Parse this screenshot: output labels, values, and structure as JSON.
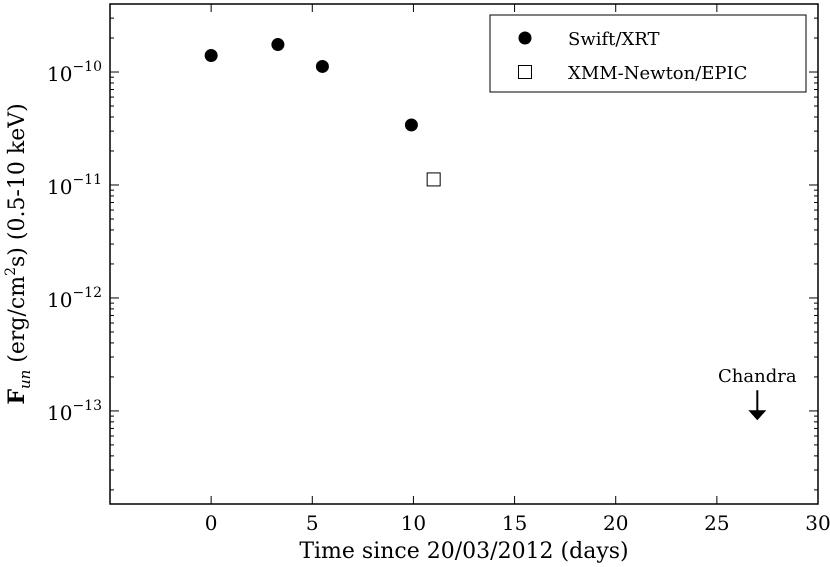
{
  "chart_data": {
    "type": "scatter",
    "xlabel": "Time since 20/03/2012 (days)",
    "ylabel": {
      "base": "F",
      "subscript": "un",
      "rest_a": " (erg/cm",
      "sup": "2",
      "rest_b": "s) (0.5-10 keV)"
    },
    "xlim": [
      -5,
      30
    ],
    "ylim": [
      1.5e-14,
      4e-10
    ],
    "yscale": "log",
    "grid": false,
    "legend_position": "top-right",
    "x_ticks": [
      0,
      5,
      10,
      15,
      20,
      25,
      30
    ],
    "y_ticks": [
      {
        "value": 1e-10,
        "base": "10",
        "exp": "−10"
      },
      {
        "value": 1e-11,
        "base": "10",
        "exp": "−11"
      },
      {
        "value": 1e-12,
        "base": "10",
        "exp": "−12"
      },
      {
        "value": 1e-13,
        "base": "10",
        "exp": "−13"
      }
    ],
    "series": [
      {
        "name": "Swift/XRT",
        "marker": "filled-circle",
        "color": "#000000",
        "x": [
          0,
          3.3,
          5.5,
          9.9
        ],
        "y": [
          1.4e-10,
          1.75e-10,
          1.12e-10,
          3.4e-11
        ]
      },
      {
        "name": "XMM-Newton/EPIC",
        "marker": "open-square",
        "color": "#000000",
        "x": [
          11
        ],
        "y": [
          1.12e-11
        ]
      }
    ],
    "annotations": [
      {
        "text": "Chandra",
        "x": 27,
        "y": 1.1e-13,
        "marker": "down-arrow",
        "meaning": "upper-limit"
      }
    ]
  }
}
